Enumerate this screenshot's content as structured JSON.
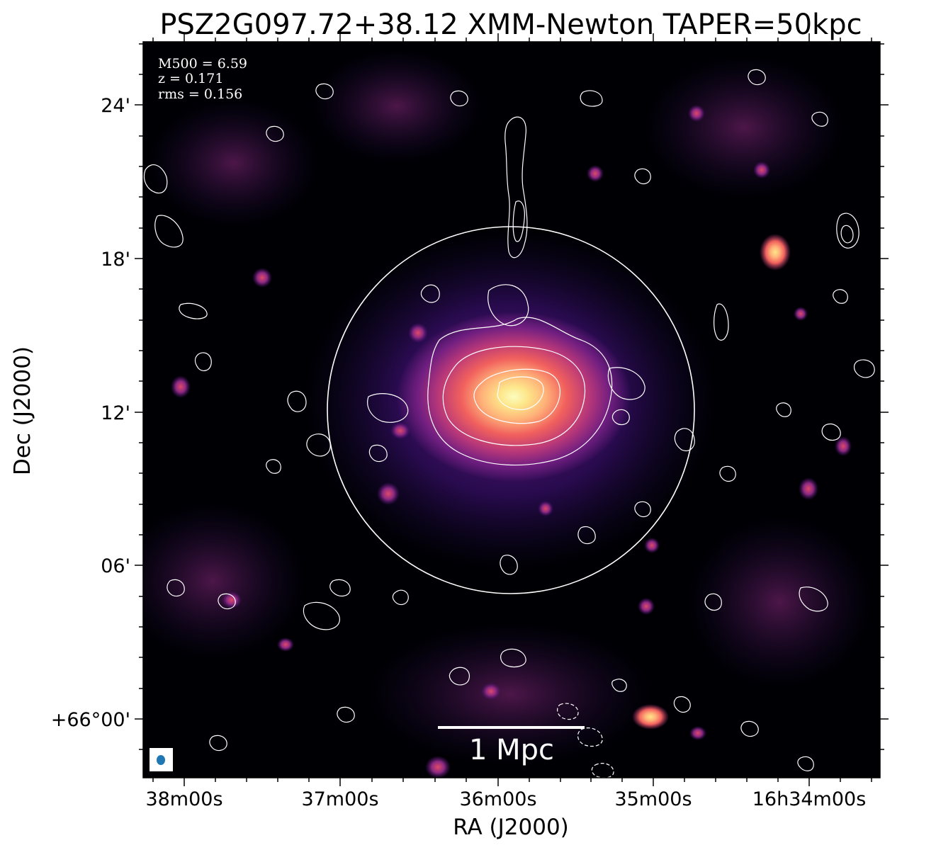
{
  "title": "PSZ2G097.72+38.12 XMM-Newton TAPER=50kpc",
  "axes": {
    "xlabel": "RA (J2000)",
    "ylabel": "Dec (J2000)",
    "xticks": [
      "38m00s",
      "37m00s",
      "36m00s",
      "35m00s",
      "16h34m00s"
    ],
    "yticks": [
      "24'",
      "18'",
      "12'",
      "06'",
      "+66°00'"
    ]
  },
  "info": {
    "m500": "M500 = 6.59",
    "z": "z = 0.171",
    "rms": "rms = 0.156"
  },
  "scalebar": {
    "label": "1 Mpc"
  },
  "colors": {
    "background": "#000004",
    "colormap": [
      "#000004",
      "#2c115f",
      "#721f81",
      "#b73779",
      "#f1605d",
      "#feb078",
      "#fcfdbf"
    ],
    "contours": "#ffffff",
    "beam": "#1f77b4"
  }
}
